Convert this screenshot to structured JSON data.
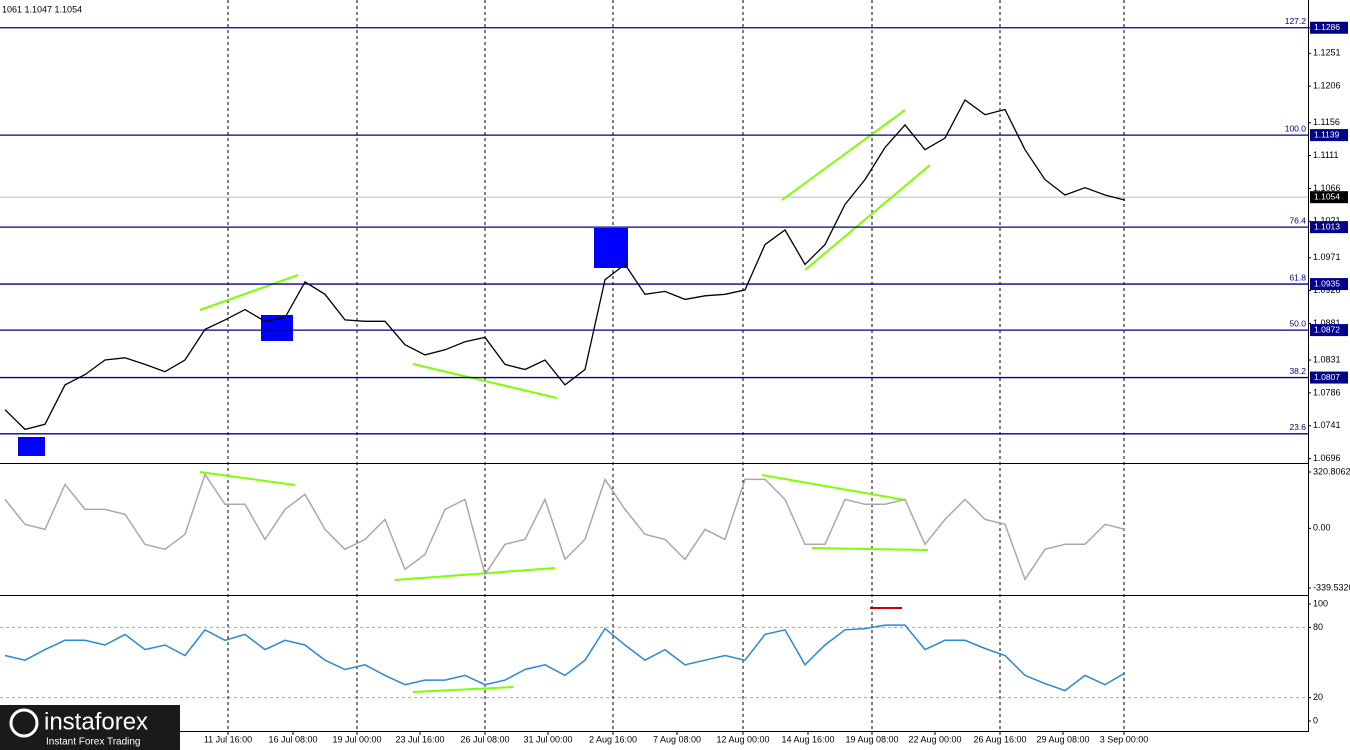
{
  "chart_data": [
    {
      "type": "line",
      "header": "1061 1.1047 1.1054",
      "x": [
        0,
        1,
        2,
        3,
        4,
        5,
        6,
        7,
        8,
        9,
        10,
        11,
        12,
        13,
        14,
        15,
        16,
        17,
        18,
        19,
        20,
        21,
        22,
        23,
        24,
        25,
        26,
        27,
        28,
        29,
        30,
        31,
        32,
        33,
        34,
        35,
        36,
        37,
        38,
        39,
        40,
        41,
        42,
        43,
        44,
        45,
        46,
        47,
        48,
        49,
        50,
        51,
        52,
        53,
        54,
        55,
        56
      ],
      "values": [
        1.0763,
        1.0736,
        1.0743,
        1.0797,
        1.0811,
        1.0831,
        1.0834,
        1.0825,
        1.0815,
        1.0831,
        1.0873,
        1.0886,
        1.09,
        1.0884,
        1.0889,
        1.0938,
        1.0921,
        1.0886,
        1.0884,
        1.0884,
        1.0852,
        1.0838,
        1.0845,
        1.0856,
        1.0862,
        1.0825,
        1.0818,
        1.0831,
        1.0797,
        1.0818,
        1.0941,
        1.0962,
        1.0921,
        1.0925,
        1.0914,
        1.0919,
        1.0921,
        1.0927,
        1.0989,
        1.1009,
        1.0962,
        1.0989,
        1.1044,
        1.1078,
        1.1122,
        1.1153,
        1.1119,
        1.1135,
        1.1187,
        1.1167,
        1.1174,
        1.1119,
        1.1078,
        1.1057,
        1.1067,
        1.1057,
        1.105
      ],
      "color": "#000000",
      "xlim": [
        -0.25,
        65
      ],
      "ylim": [
        1.069,
        1.1324
      ],
      "yticks": [
        1.1286,
        1.1251,
        1.1206,
        1.1156,
        1.1111,
        1.1066,
        1.1021,
        1.0971,
        1.0926,
        1.0881,
        1.0831,
        1.0786,
        1.0741,
        1.0696
      ],
      "levels": [
        {
          "fib": "127.2",
          "value": 1.1286
        },
        {
          "fib": "100.0",
          "value": 1.1139
        },
        {
          "fib": "76.4",
          "value": 1.1013
        },
        {
          "fib": "61.8",
          "value": 1.0935
        },
        {
          "fib": "50.0",
          "value": 1.0872
        },
        {
          "fib": "38.2",
          "value": 1.0807
        },
        {
          "fib": "23.6",
          "value": 1.073,
          "badge": false
        }
      ],
      "level_color": "#00008b",
      "last": 1.1054
    },
    {
      "type": "line",
      "x": [
        0,
        1,
        2,
        3,
        4,
        5,
        6,
        7,
        8,
        9,
        10,
        11,
        12,
        13,
        14,
        15,
        16,
        17,
        18,
        19,
        20,
        21,
        22,
        23,
        24,
        25,
        26,
        27,
        28,
        29,
        30,
        31,
        32,
        33,
        34,
        35,
        36,
        37,
        38,
        39,
        40,
        41,
        42,
        43,
        44,
        45,
        46,
        47,
        48,
        49,
        50,
        51,
        52,
        53,
        54,
        55,
        56
      ],
      "values": [
        165,
        23,
        -6,
        250,
        108,
        108,
        80,
        -91,
        -119,
        -34,
        307,
        137,
        137,
        -63,
        108,
        194,
        -6,
        -119,
        -63,
        51,
        -233,
        -148,
        108,
        165,
        -262,
        -91,
        -63,
        165,
        -176,
        -63,
        279,
        108,
        -34,
        -63,
        -176,
        -6,
        -63,
        279,
        279,
        165,
        -91,
        -91,
        165,
        137,
        137,
        165,
        -91,
        51,
        165,
        51,
        23,
        -290,
        -119,
        -91,
        -91,
        23,
        -6
      ],
      "color": "#a9a9a9",
      "xlim": [
        -0.25,
        65
      ],
      "ylim": [
        -368,
        360.7
      ],
      "yticks": [
        320.8062,
        {
          "value": 0,
          "label": "0.00"
        },
        {
          "value": -339.532,
          "label": "-339.5320"
        }
      ]
    },
    {
      "type": "line",
      "x": [
        0,
        1,
        2,
        3,
        4,
        5,
        6,
        7,
        8,
        9,
        10,
        11,
        12,
        13,
        14,
        15,
        16,
        17,
        18,
        19,
        20,
        21,
        22,
        23,
        24,
        25,
        26,
        27,
        28,
        29,
        30,
        31,
        32,
        33,
        34,
        35,
        36,
        37,
        38,
        39,
        40,
        41,
        42,
        43,
        44,
        45,
        46,
        47,
        48,
        49,
        50,
        51,
        52,
        53,
        54,
        55,
        56
      ],
      "values": [
        56,
        52,
        61,
        69,
        69,
        65,
        74,
        61,
        65,
        56,
        78,
        69,
        74,
        61,
        69,
        65,
        52,
        44,
        48,
        39,
        31,
        35,
        35,
        39,
        31,
        35,
        44,
        48,
        39,
        52,
        79,
        65,
        52,
        61,
        48,
        52,
        56,
        52,
        74,
        78,
        48,
        65,
        78,
        79,
        82,
        82,
        61,
        69,
        69,
        62,
        56,
        39,
        32,
        26,
        39,
        31,
        41
      ],
      "color": "#2b88d8",
      "xlim": [
        -0.25,
        65
      ],
      "ylim": [
        -7.7,
        106
      ],
      "yticks": [
        100,
        80,
        20,
        0
      ],
      "levels": [
        80,
        20
      ],
      "xticks": [
        {
          "value": 11.15,
          "label": "11 Jul 16:00"
        },
        {
          "value": 14.4,
          "label": "16 Jul 08:00"
        },
        {
          "value": 17.6,
          "label": "19 Jul 00:00"
        },
        {
          "value": 20.75,
          "label": "23 Jul 16:00"
        },
        {
          "value": 24.0,
          "label": "26 Jul 08:00"
        },
        {
          "value": 27.15,
          "label": "31 Jul 00:00"
        },
        {
          "value": 30.4,
          "label": "2 Aug 16:00"
        },
        {
          "value": 33.6,
          "label": "7 Aug 08:00"
        },
        {
          "value": 36.9,
          "label": "12 Aug 00:00"
        },
        {
          "value": 40.15,
          "label": "14 Aug 16:00"
        },
        {
          "value": 43.35,
          "label": "19 Aug 08:00"
        },
        {
          "value": 46.5,
          "label": "22 Aug 00:00"
        },
        {
          "value": 49.75,
          "label": "26 Aug 16:00"
        },
        {
          "value": 52.9,
          "label": "29 Aug 08:00"
        },
        {
          "value": 55.95,
          "label": "3 Sep 00:00"
        }
      ]
    }
  ],
  "watermark": {
    "brand": "instaforex",
    "tagline": "Instant Forex Trading"
  }
}
